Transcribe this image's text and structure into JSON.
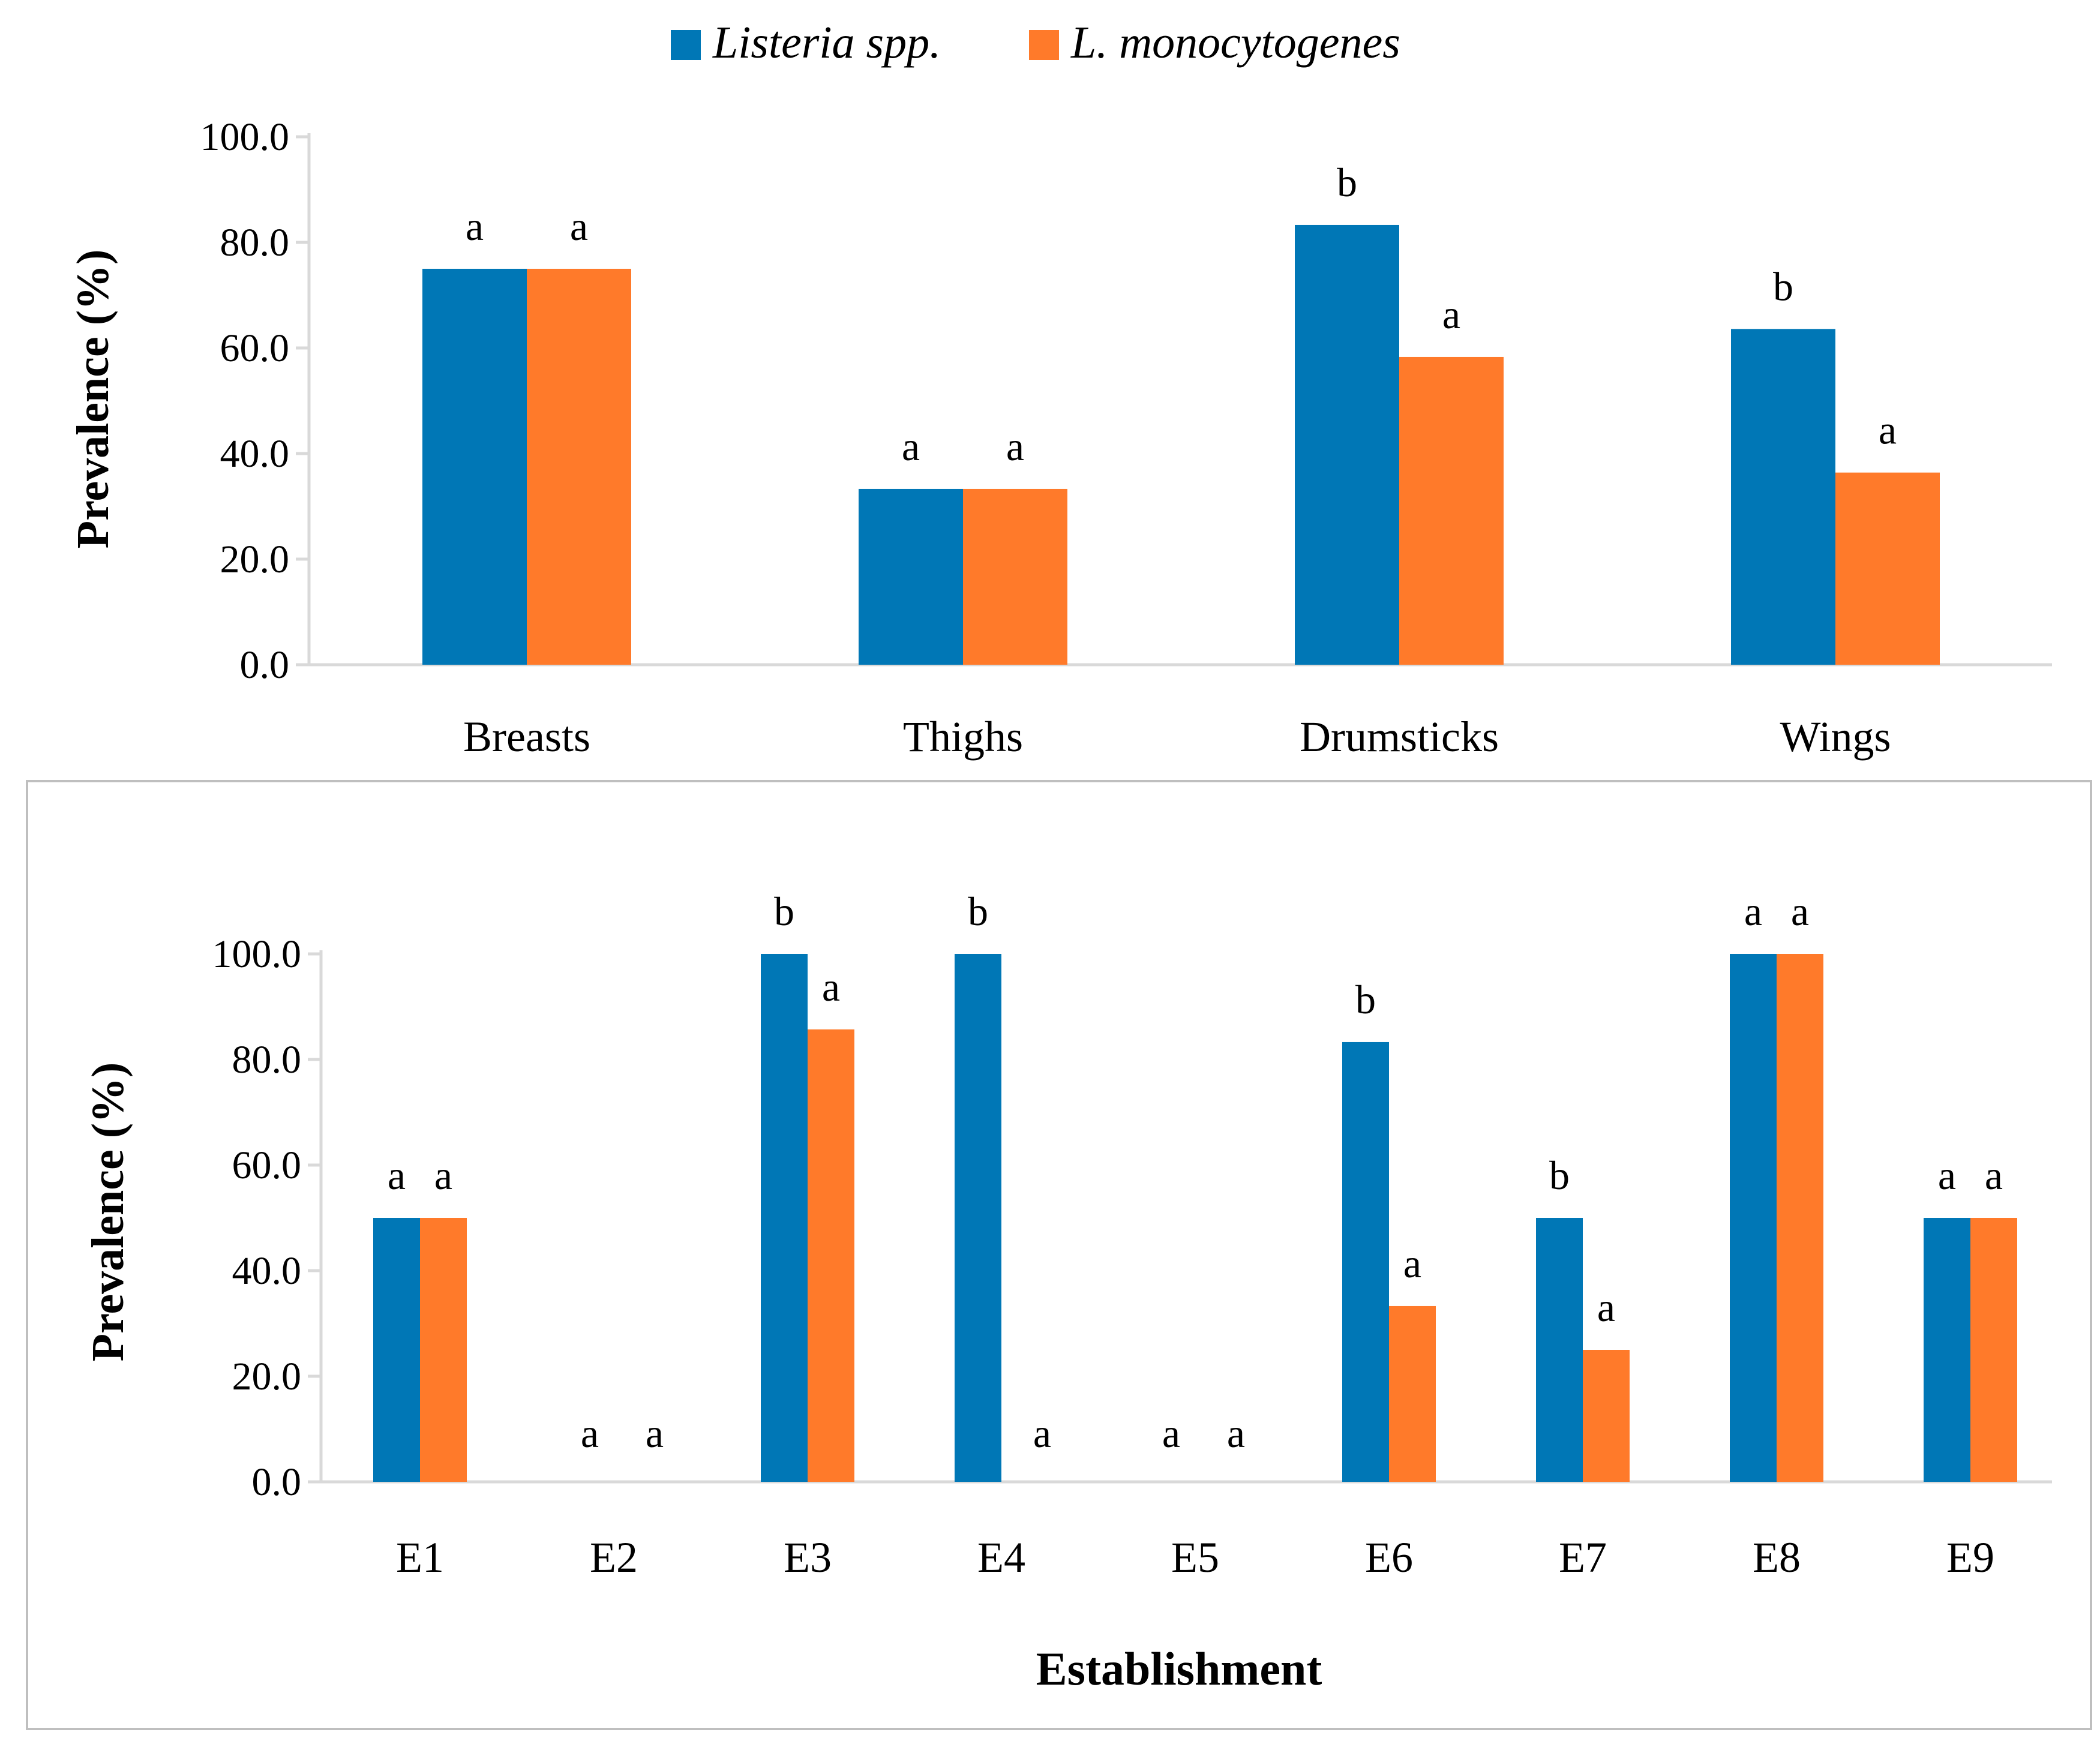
{
  "colors": {
    "listeria": "#0077B6",
    "mono": "#FF7A2A"
  },
  "legend": {
    "series1": "Listeria spp.",
    "series2": "L. monocytogenes"
  },
  "chart_data": [
    {
      "type": "bar",
      "title": "",
      "ylabel": "Prevalence (%)",
      "xlabel": "",
      "ylim": [
        0,
        100
      ],
      "yticks": [
        "0.0",
        "20.0",
        "40.0",
        "60.0",
        "80.0",
        "100.0"
      ],
      "categories": [
        "Breasts",
        "Thighs",
        "Drumsticks",
        "Wings"
      ],
      "series": [
        {
          "name": "Listeria spp.",
          "values": [
            75.0,
            33.3,
            83.3,
            63.6
          ],
          "labels": [
            "a",
            "a",
            "b",
            "b"
          ]
        },
        {
          "name": "L. monocytogenes",
          "values": [
            75.0,
            33.3,
            58.3,
            36.4
          ],
          "labels": [
            "a",
            "a",
            "a",
            "a"
          ]
        }
      ]
    },
    {
      "type": "bar",
      "title": "",
      "ylabel": "Prevalence (%)",
      "xlabel": "Establishment",
      "ylim": [
        0,
        100
      ],
      "yticks": [
        "0.0",
        "20.0",
        "40.0",
        "60.0",
        "80.0",
        "100.0"
      ],
      "categories": [
        "E1",
        "E2",
        "E3",
        "E4",
        "E5",
        "E6",
        "E7",
        "E8",
        "E9"
      ],
      "series": [
        {
          "name": "Listeria spp.",
          "values": [
            50,
            0,
            100,
            100,
            0,
            83.3,
            50,
            100,
            50
          ],
          "labels": [
            "a",
            "a",
            "b",
            "b",
            "a",
            "b",
            "b",
            "a",
            "a"
          ]
        },
        {
          "name": "L. monocytogenes",
          "values": [
            50,
            0,
            85.7,
            0,
            0,
            33.3,
            25,
            100,
            50
          ],
          "labels": [
            "a",
            "a",
            "a",
            "a",
            "a",
            "a",
            "a",
            "a",
            "a"
          ]
        }
      ]
    }
  ]
}
